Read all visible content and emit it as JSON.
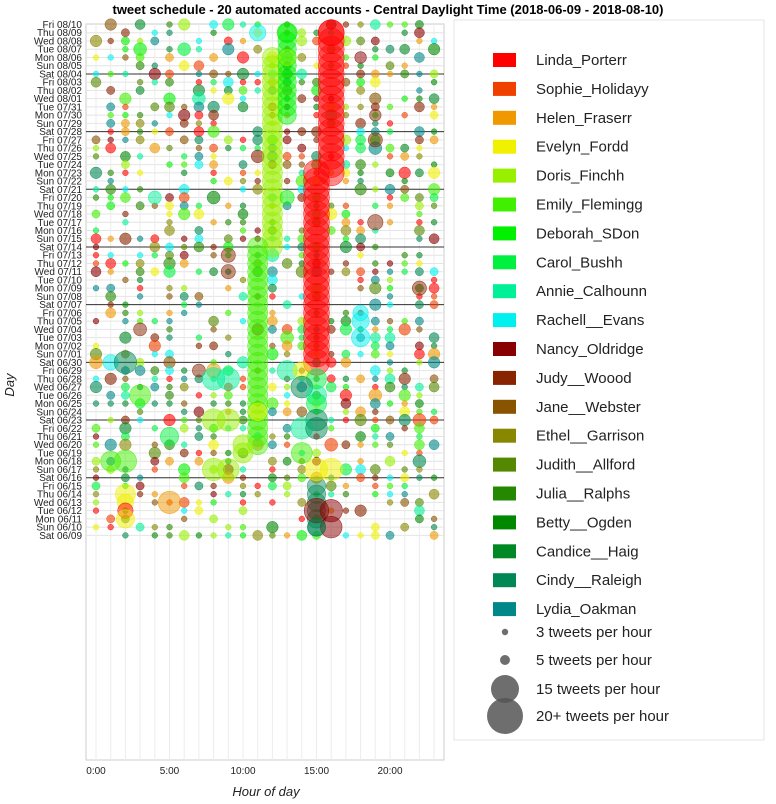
{
  "chart_data": {
    "type": "scatter",
    "title": "tweet schedule - 20 automated accounts - Central Daylight Time (2018-06-09 - 2018-08-10)",
    "xlabel": "Hour of day",
    "ylabel": "Day",
    "xlim": [
      -0.5,
      23.5
    ],
    "x_ticks": [
      {
        "value": 0,
        "label": "0:00"
      },
      {
        "value": 5,
        "label": "5:00"
      },
      {
        "value": 10,
        "label": "10:00"
      },
      {
        "value": 15,
        "label": "15:00"
      },
      {
        "value": 20,
        "label": "20:00"
      }
    ],
    "days": [
      "Fri 08/10",
      "Thu 08/09",
      "Wed 08/08",
      "Tue 08/07",
      "Mon 08/06",
      "Sun 08/05",
      "Sat 08/04",
      "Fri 08/03",
      "Thu 08/02",
      "Wed 08/01",
      "Tue 07/31",
      "Mon 07/30",
      "Sun 07/29",
      "Sat 07/28",
      "Fri 07/27",
      "Thu 07/26",
      "Wed 07/25",
      "Tue 07/24",
      "Mon 07/23",
      "Sun 07/22",
      "Sat 07/21",
      "Fri 07/20",
      "Thu 07/19",
      "Wed 07/18",
      "Tue 07/17",
      "Mon 07/16",
      "Sun 07/15",
      "Sat 07/14",
      "Fri 07/13",
      "Thu 07/12",
      "Wed 07/11",
      "Tue 07/10",
      "Mon 07/09",
      "Sun 07/08",
      "Sat 07/07",
      "Fri 07/06",
      "Thu 07/05",
      "Wed 07/04",
      "Tue 07/03",
      "Mon 07/02",
      "Sun 07/01",
      "Sat 06/30",
      "Fri 06/29",
      "Thu 06/28",
      "Wed 06/27",
      "Tue 06/26",
      "Mon 06/25",
      "Sun 06/24",
      "Sat 06/23",
      "Fri 06/22",
      "Thu 06/21",
      "Wed 06/20",
      "Tue 06/19",
      "Mon 06/18",
      "Sun 06/17",
      "Sat 06/16",
      "Fri 06/15",
      "Thu 06/14",
      "Wed 06/13",
      "Tue 06/12",
      "Mon 06/11",
      "Sun 06/10",
      "Sat 06/09"
    ],
    "week_separators": [
      "Sat 08/04",
      "Sat 07/28",
      "Sat 07/21",
      "Sat 07/14",
      "Sat 07/07",
      "Sat 06/30",
      "Sat 06/23",
      "Sat 06/16"
    ],
    "grid": true,
    "legend_placement": "right",
    "accounts": [
      {
        "name": "Linda_Porterr",
        "color": "#ff0000"
      },
      {
        "name": "Sophie_Holidayy",
        "color": "#f04000"
      },
      {
        "name": "Helen_Fraserr",
        "color": "#f09800"
      },
      {
        "name": "Evelyn_Fordd",
        "color": "#f0f000"
      },
      {
        "name": "Doris_Finchh",
        "color": "#98f000"
      },
      {
        "name": "Emily_Flemingg",
        "color": "#40f000"
      },
      {
        "name": "Deborah_SDon",
        "color": "#00f000"
      },
      {
        "name": "Carol_Bushh",
        "color": "#00f040"
      },
      {
        "name": "Annie_Calhounn",
        "color": "#00f098"
      },
      {
        "name": "Rachell__Evans",
        "color": "#00f0f0"
      },
      {
        "name": "Nancy_Oldridge",
        "color": "#880000"
      },
      {
        "name": "Judy__Woood",
        "color": "#882400"
      },
      {
        "name": "Jane__Webster",
        "color": "#885400"
      },
      {
        "name": "Ethel__Garrison",
        "color": "#888800"
      },
      {
        "name": "Judith__Allford",
        "color": "#548800"
      },
      {
        "name": "Julia__Ralphs",
        "color": "#248800"
      },
      {
        "name": "Betty__Ogden",
        "color": "#008800"
      },
      {
        "name": "Candice__Haig",
        "color": "#008824"
      },
      {
        "name": "Cindy__Raleigh",
        "color": "#008854"
      },
      {
        "name": "Lydia_Oakman",
        "color": "#008888"
      }
    ],
    "size_legend": [
      {
        "label": "3 tweets per hour",
        "count": 3
      },
      {
        "label": "5 tweets per hour",
        "count": 5
      },
      {
        "label": "15 tweets per hour",
        "count": 15
      },
      {
        "label": "20+ tweets per hour",
        "count": 20
      }
    ],
    "scatter_columns": [
      0,
      1,
      2,
      3,
      4,
      5,
      6,
      7,
      8,
      9,
      10,
      11,
      12,
      13,
      14,
      15,
      16,
      17,
      18,
      19,
      20,
      21,
      22,
      23
    ],
    "bands": [
      {
        "account": "Linda_Porterr",
        "hour": 16,
        "from_day": "Thu 08/09",
        "to_day": "Mon 07/23",
        "count": 20
      },
      {
        "account": "Linda_Porterr",
        "hour": 15,
        "from_day": "Mon 07/23",
        "to_day": "Sat 06/30",
        "count": 20
      },
      {
        "account": "Doris_Finchh",
        "hour": 12,
        "from_day": "Mon 08/06",
        "to_day": "Sat 07/14",
        "count": 12
      },
      {
        "account": "Emily_Flemingg",
        "hour": 11,
        "from_day": "Sat 07/14",
        "to_day": "Wed 06/20",
        "count": 12
      },
      {
        "account": "Deborah_SDon",
        "hour": 13,
        "from_day": "Thu 08/09",
        "to_day": "Mon 07/30",
        "count": 10
      },
      {
        "account": "Cindy__Raleigh",
        "hour": 15,
        "from_day": "Fri 06/15",
        "to_day": "Sun 06/10",
        "count": 10
      }
    ],
    "points": [
      {
        "account": "Linda_Porterr",
        "day": "Thu 08/09",
        "hour": 16,
        "count": 20
      },
      {
        "account": "Rachell__Evans",
        "day": "Thu 08/09",
        "hour": 11,
        "count": 8
      },
      {
        "account": "Deborah_SDon",
        "day": "Thu 08/09",
        "hour": 13,
        "count": 12
      },
      {
        "account": "Doris_Finchh",
        "day": "Mon 08/06",
        "hour": 13,
        "count": 8
      },
      {
        "account": "Nancy_Oldridge",
        "day": "Mon 08/06",
        "hour": 18,
        "count": 4
      },
      {
        "account": "Judy__Woood",
        "day": "Mon 07/30",
        "hour": 19,
        "count": 4
      },
      {
        "account": "Judy__Woood",
        "day": "Fri 07/27",
        "hour": 19,
        "count": 6
      },
      {
        "account": "Annie_Calhounn",
        "day": "Fri 07/20",
        "hour": 4,
        "count": 5
      },
      {
        "account": "Deborah_SDon",
        "day": "Fri 07/20",
        "hour": 13,
        "count": 6
      },
      {
        "account": "Judy__Woood",
        "day": "Tue 07/17",
        "hour": 19,
        "count": 7
      },
      {
        "account": "Judy__Woood",
        "day": "Fri 07/13",
        "hour": 9,
        "count": 6
      },
      {
        "account": "Judy__Woood",
        "day": "Wed 07/11",
        "hour": 9,
        "count": 6
      },
      {
        "account": "Judy__Woood",
        "day": "Mon 07/09",
        "hour": 22,
        "count": 6
      },
      {
        "account": "Rachell__Evans",
        "day": "Fri 07/06",
        "hour": 18,
        "count": 7
      },
      {
        "account": "Rachell__Evans",
        "day": "Thu 07/05",
        "hour": 18,
        "count": 9
      },
      {
        "account": "Rachell__Evans",
        "day": "Tue 07/03",
        "hour": 18,
        "count": 10
      },
      {
        "account": "Judy__Woood",
        "day": "Wed 07/04",
        "hour": 3,
        "count": 5
      },
      {
        "account": "Rachell__Evans",
        "day": "Sat 06/30",
        "hour": 1,
        "count": 7
      },
      {
        "account": "Cindy__Raleigh",
        "day": "Sat 06/30",
        "hour": 2,
        "count": 15
      },
      {
        "account": "Judy__Woood",
        "day": "Fri 06/29",
        "hour": 7,
        "count": 5
      },
      {
        "account": "Helen_Fraserr",
        "day": "Fri 06/29",
        "hour": 8,
        "count": 6
      },
      {
        "account": "Annie_Calhounn",
        "day": "Thu 06/28",
        "hour": 8,
        "count": 15
      },
      {
        "account": "Annie_Calhounn",
        "day": "Thu 06/28",
        "hour": 9,
        "count": 15
      },
      {
        "account": "Annie_Calhounn",
        "day": "Fri 06/29",
        "hour": 13,
        "count": 12
      },
      {
        "account": "Evelyn_Fordd",
        "day": "Fri 06/29",
        "hour": 14,
        "count": 9
      },
      {
        "account": "Carol_Bushh",
        "day": "Thu 06/28",
        "hour": 15,
        "count": 12
      },
      {
        "account": "Cindy__Raleigh",
        "day": "Wed 06/27",
        "hour": 14,
        "count": 14
      },
      {
        "account": "Emily_Flemingg",
        "day": "Tue 06/26",
        "hour": 3,
        "count": 13
      },
      {
        "account": "Annie_Calhounn",
        "day": "Tue 06/26",
        "hour": 15,
        "count": 12
      },
      {
        "account": "Carol_Bushh",
        "day": "Mon 06/25",
        "hour": 15,
        "count": 12
      },
      {
        "account": "Evelyn_Fordd",
        "day": "Sun 06/24",
        "hour": 11,
        "count": 9
      },
      {
        "account": "Doris_Finchh",
        "day": "Sat 06/23",
        "hour": 8,
        "count": 15
      },
      {
        "account": "Doris_Finchh",
        "day": "Sat 06/23",
        "hour": 9,
        "count": 15
      },
      {
        "account": "Cindy__Raleigh",
        "day": "Sat 06/23",
        "hour": 15,
        "count": 14
      },
      {
        "account": "Annie_Calhounn",
        "day": "Fri 06/22",
        "hour": 14,
        "count": 14
      },
      {
        "account": "Cindy__Raleigh",
        "day": "Fri 06/22",
        "hour": 15,
        "count": 14
      },
      {
        "account": "Carol_Bushh",
        "day": "Thu 06/21",
        "hour": 5,
        "count": 10
      },
      {
        "account": "Doris_Finchh",
        "day": "Wed 06/20",
        "hour": 10,
        "count": 12
      },
      {
        "account": "Emily_Flemingg",
        "day": "Tue 06/19",
        "hour": 14,
        "count": 13
      },
      {
        "account": "Doris_Finchh",
        "day": "Tue 06/19",
        "hour": 10,
        "count": 12
      },
      {
        "account": "Emily_Flemingg",
        "day": "Mon 06/18",
        "hour": 1,
        "count": 12
      },
      {
        "account": "Emily_Flemingg",
        "day": "Mon 06/18",
        "hour": 2,
        "count": 15
      },
      {
        "account": "Doris_Finchh",
        "day": "Sun 06/17",
        "hour": 8,
        "count": 15
      },
      {
        "account": "Doris_Finchh",
        "day": "Sun 06/17",
        "hour": 9,
        "count": 14
      },
      {
        "account": "Evelyn_Fordd",
        "day": "Sun 06/17",
        "hour": 15,
        "count": 15
      },
      {
        "account": "Evelyn_Fordd",
        "day": "Sun 06/17",
        "hour": 16,
        "count": 15
      },
      {
        "account": "Evelyn_Fordd",
        "day": "Thu 06/14",
        "hour": 2,
        "count": 12
      },
      {
        "account": "Helen_Fraserr",
        "day": "Wed 06/13",
        "hour": 5,
        "count": 15
      },
      {
        "account": "Evelyn_Fordd",
        "day": "Wed 06/13",
        "hour": 2,
        "count": 8
      },
      {
        "account": "Linda_Porterr",
        "day": "Tue 06/12",
        "hour": 2,
        "count": 7
      },
      {
        "account": "Evelyn_Fordd",
        "day": "Mon 06/11",
        "hour": 2,
        "count": 10
      },
      {
        "account": "Nancy_Oldridge",
        "day": "Tue 06/12",
        "hour": 15,
        "count": 18
      },
      {
        "account": "Nancy_Oldridge",
        "day": "Tue 06/12",
        "hour": 16,
        "count": 15
      },
      {
        "account": "Nancy_Oldridge",
        "day": "Sun 06/10",
        "hour": 16,
        "count": 14
      },
      {
        "account": "Cindy__Raleigh",
        "day": "Sun 06/10",
        "hour": 15,
        "count": 9
      }
    ]
  }
}
